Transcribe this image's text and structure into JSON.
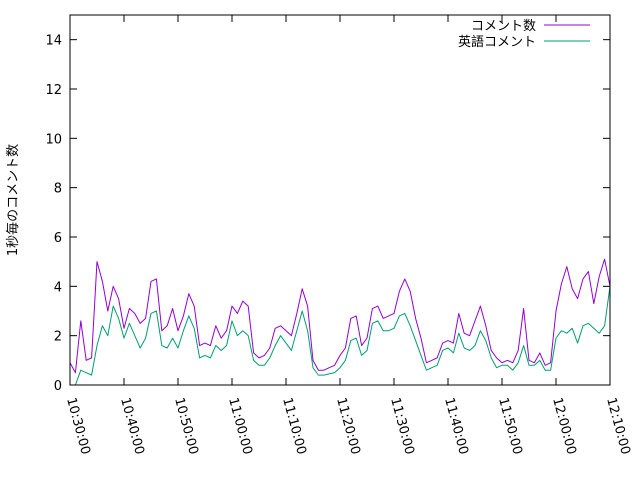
{
  "chart_data": {
    "type": "line",
    "title": "",
    "xlabel": "",
    "ylabel": "1秒毎のコメント数",
    "xlim": [
      "10:30:00",
      "12:10:00"
    ],
    "ylim": [
      0,
      15
    ],
    "x_tick_labels": [
      "10:30:00",
      "10:40:00",
      "10:50:00",
      "11:00:00",
      "11:10:00",
      "11:20:00",
      "11:30:00",
      "11:40:00",
      "11:50:00",
      "12:00:00",
      "12:10:00"
    ],
    "y_tick_labels": [
      "0",
      "2",
      "4",
      "6",
      "8",
      "10",
      "12",
      "14"
    ],
    "y_ticks": [
      0,
      2,
      4,
      6,
      8,
      10,
      12,
      14
    ],
    "grid": false,
    "legend_position": "top-right",
    "x": [
      "10:30:00",
      "10:31:00",
      "10:32:00",
      "10:33:00",
      "10:34:00",
      "10:35:00",
      "10:36:00",
      "10:37:00",
      "10:38:00",
      "10:39:00",
      "10:40:00",
      "10:41:00",
      "10:42:00",
      "10:43:00",
      "10:44:00",
      "10:45:00",
      "10:46:00",
      "10:47:00",
      "10:48:00",
      "10:49:00",
      "10:50:00",
      "10:51:00",
      "10:52:00",
      "10:53:00",
      "10:54:00",
      "10:55:00",
      "10:56:00",
      "10:57:00",
      "10:58:00",
      "10:59:00",
      "11:00:00",
      "11:01:00",
      "11:02:00",
      "11:03:00",
      "11:04:00",
      "11:05:00",
      "11:06:00",
      "11:07:00",
      "11:08:00",
      "11:09:00",
      "11:10:00",
      "11:11:00",
      "11:12:00",
      "11:13:00",
      "11:14:00",
      "11:15:00",
      "11:16:00",
      "11:17:00",
      "11:18:00",
      "11:19:00",
      "11:20:00",
      "11:21:00",
      "11:22:00",
      "11:23:00",
      "11:24:00",
      "11:25:00",
      "11:26:00",
      "11:27:00",
      "11:28:00",
      "11:29:00",
      "11:30:00",
      "11:31:00",
      "11:32:00",
      "11:33:00",
      "11:34:00",
      "11:35:00",
      "11:36:00",
      "11:37:00",
      "11:38:00",
      "11:39:00",
      "11:40:00",
      "11:41:00",
      "11:42:00",
      "11:43:00",
      "11:44:00",
      "11:45:00",
      "11:46:00",
      "11:47:00",
      "11:48:00",
      "11:49:00",
      "11:50:00",
      "11:51:00",
      "11:52:00",
      "11:53:00",
      "11:54:00",
      "11:55:00",
      "11:56:00",
      "11:57:00",
      "11:58:00",
      "11:59:00",
      "12:00:00",
      "12:01:00",
      "12:02:00",
      "12:03:00",
      "12:04:00",
      "12:05:00",
      "12:06:00",
      "12:07:00",
      "12:08:00",
      "12:09:00",
      "12:10:00"
    ],
    "series": [
      {
        "name": "コメント数",
        "color": "#9400d3",
        "values": [
          0.9,
          0.5,
          2.6,
          1.0,
          1.1,
          5.0,
          4.2,
          3.0,
          4.0,
          3.5,
          2.3,
          3.1,
          2.9,
          2.5,
          2.7,
          4.2,
          4.3,
          2.2,
          2.4,
          3.1,
          2.2,
          2.8,
          3.7,
          3.2,
          1.6,
          1.7,
          1.6,
          2.4,
          1.9,
          2.2,
          3.2,
          2.9,
          3.4,
          3.2,
          1.3,
          1.1,
          1.2,
          1.5,
          2.3,
          2.4,
          2.2,
          2.0,
          2.9,
          3.9,
          3.2,
          1.0,
          0.6,
          0.6,
          0.7,
          0.8,
          1.2,
          1.5,
          2.7,
          2.8,
          1.6,
          1.9,
          3.1,
          3.2,
          2.7,
          2.8,
          2.9,
          3.8,
          4.3,
          3.8,
          2.7,
          1.9,
          0.9,
          1.0,
          1.1,
          1.7,
          1.8,
          1.7,
          2.9,
          2.1,
          2.0,
          2.6,
          3.2,
          2.4,
          1.4,
          1.1,
          0.9,
          1.0,
          0.9,
          1.4,
          3.1,
          1.0,
          0.9,
          1.3,
          0.8,
          0.9,
          3.0,
          4.1,
          4.8,
          3.9,
          3.5,
          4.3,
          4.6,
          3.3,
          4.4,
          5.1,
          4.0
        ]
      },
      {
        "name": "英語コメント",
        "color": "#009e73",
        "values": [
          0.0,
          0.0,
          0.6,
          0.5,
          0.4,
          1.6,
          2.4,
          2.0,
          3.2,
          2.7,
          1.9,
          2.5,
          2.0,
          1.5,
          1.9,
          2.9,
          3.0,
          1.6,
          1.5,
          1.9,
          1.5,
          2.2,
          2.8,
          2.3,
          1.1,
          1.2,
          1.1,
          1.6,
          1.4,
          1.6,
          2.6,
          2.0,
          2.2,
          2.0,
          1.0,
          0.8,
          0.8,
          1.1,
          1.6,
          2.0,
          1.7,
          1.4,
          2.2,
          3.0,
          2.2,
          0.7,
          0.4,
          0.4,
          0.45,
          0.5,
          0.7,
          1.0,
          1.8,
          1.9,
          1.2,
          1.4,
          2.5,
          2.6,
          2.2,
          2.2,
          2.3,
          2.8,
          2.9,
          2.4,
          1.8,
          1.2,
          0.6,
          0.7,
          0.8,
          1.4,
          1.5,
          1.3,
          2.1,
          1.5,
          1.4,
          1.6,
          2.2,
          1.8,
          1.1,
          0.7,
          0.8,
          0.8,
          0.6,
          0.9,
          1.6,
          0.8,
          0.8,
          1.0,
          0.6,
          0.6,
          1.9,
          2.2,
          2.1,
          2.3,
          1.7,
          2.4,
          2.5,
          2.3,
          2.1,
          2.4,
          4.0
        ]
      }
    ]
  }
}
